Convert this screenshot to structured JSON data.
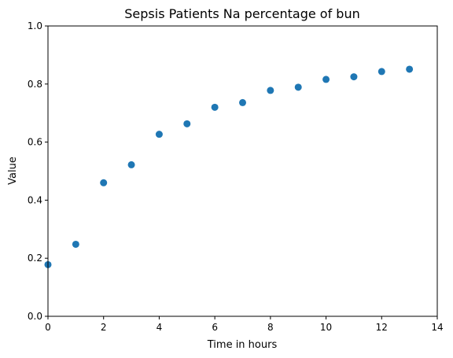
{
  "chart_data": {
    "type": "scatter",
    "title": "Sepsis Patients Na percentage of bun",
    "xlabel": "Time in hours",
    "ylabel": "Value",
    "xlim": [
      0,
      14
    ],
    "ylim": [
      0,
      1.0
    ],
    "x_ticks": [
      0,
      2,
      4,
      6,
      8,
      10,
      12,
      14
    ],
    "y_ticks": [
      0.0,
      0.2,
      0.4,
      0.6,
      0.8,
      1.0
    ],
    "x_tick_labels": [
      "0",
      "2",
      "4",
      "6",
      "8",
      "10",
      "12",
      "14"
    ],
    "y_tick_labels": [
      "0.0",
      "0.2",
      "0.4",
      "0.6",
      "0.8",
      "1.0"
    ],
    "grid": false,
    "marker_color": "#1f77b4",
    "series": [
      {
        "x": [
          0,
          1,
          2,
          3,
          4,
          5,
          6,
          7,
          8,
          9,
          10,
          11,
          12,
          13
        ],
        "y": [
          0.178,
          0.248,
          0.46,
          0.522,
          0.627,
          0.663,
          0.72,
          0.736,
          0.778,
          0.789,
          0.816,
          0.825,
          0.843,
          0.851
        ]
      }
    ]
  }
}
